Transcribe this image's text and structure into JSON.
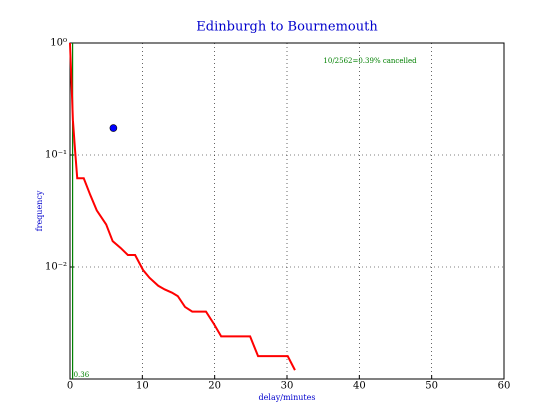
{
  "chart_data": {
    "type": "line",
    "title": "Edinburgh to Bournemouth",
    "xlabel": "delay/minutes",
    "ylabel": "frequency",
    "xlim": [
      0,
      60
    ],
    "ylim": [
      0.001,
      1
    ],
    "log_y": true,
    "grid": true,
    "xticks": [
      0,
      10,
      20,
      30,
      40,
      50,
      60
    ],
    "yticks": [
      {
        "value": 1,
        "label": "10⁰"
      },
      {
        "value": 0.1,
        "label": "10⁻¹"
      },
      {
        "value": 0.01,
        "label": "10⁻²"
      }
    ],
    "series": [
      {
        "color": "#ff0000",
        "x": [
          0,
          0.3,
          0.4,
          0.7,
          1.0,
          1.9,
          2.8,
          3.7,
          5.0,
          5.9,
          7.0,
          8.0,
          9.0,
          10.1,
          11.0,
          12.2,
          13.1,
          14.1,
          14.9,
          15.9,
          16.9,
          18.8,
          19.9,
          20.9,
          24.9,
          26.0,
          30.1,
          31.1
        ],
        "values": [
          1.0,
          0.31,
          0.205,
          0.11,
          0.062,
          0.062,
          0.044,
          0.032,
          0.024,
          0.017,
          0.0148,
          0.0128,
          0.0128,
          0.0094,
          0.008,
          0.0068,
          0.0063,
          0.0059,
          0.0055,
          0.0044,
          0.004,
          0.004,
          0.0031,
          0.0024,
          0.0024,
          0.0016,
          0.0016,
          0.0012
        ]
      }
    ],
    "point": {
      "x": 6,
      "y": 0.174,
      "color": "#0000ff"
    },
    "marker_line": {
      "x": 0.36,
      "color": "#008000"
    },
    "annotation": "10/2562=0.39% cancelled"
  }
}
